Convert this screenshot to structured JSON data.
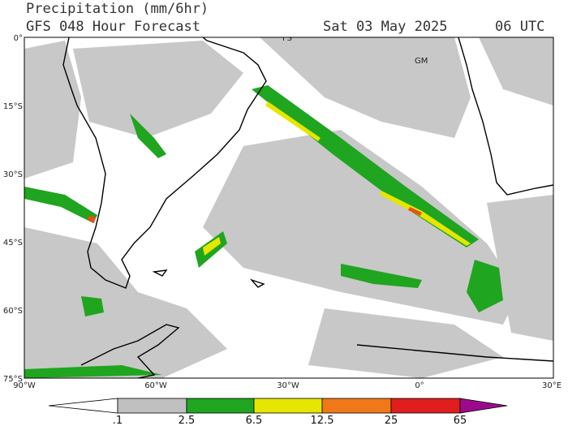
{
  "header": {
    "title": "Precipitation (mm/6hr)",
    "subtitle": "GFS 048 Hour Forecast",
    "date": "Sat 03 May 2025",
    "time": "06 UTC"
  },
  "axes": {
    "lat_labels": [
      "0°",
      "15°S",
      "30°S",
      "45°S",
      "60°S",
      "75°S"
    ],
    "lon_labels": [
      "90°W",
      "60°W",
      "30°W",
      "0°",
      "30°E"
    ]
  },
  "map_labels": [
    "FS",
    "GM"
  ],
  "colorbar": {
    "labels": [
      ".1",
      "2.5",
      "6.5",
      "12.5",
      "25",
      "65"
    ]
  }
}
